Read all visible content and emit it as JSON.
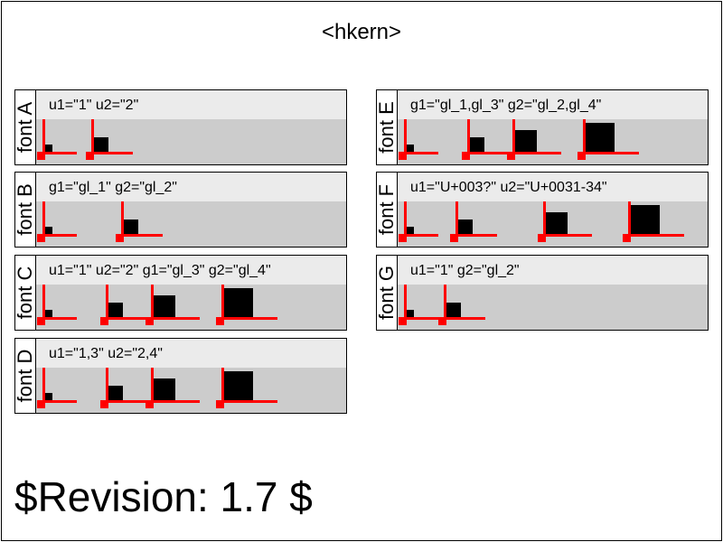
{
  "title": "<hkern>",
  "revision": "$Revision: 1.7 $",
  "panels": [
    {
      "id": "a",
      "font_label": "font A",
      "attrs": "u1=\"1\" u2=\"2\"",
      "glyph_sizes": [
        "small",
        "medium"
      ]
    },
    {
      "id": "b",
      "font_label": "font B",
      "attrs": "g1=\"gl_1\" g2=\"gl_2\"",
      "glyph_sizes": [
        "small",
        "medium"
      ]
    },
    {
      "id": "c",
      "font_label": "font C",
      "attrs": "u1=\"1\" u2=\"2\" g1=\"gl_3\" g2=\"gl_4\"",
      "glyph_sizes": [
        "small",
        "medium",
        "large",
        "xlarge"
      ]
    },
    {
      "id": "d",
      "font_label": "font D",
      "attrs": "u1=\"1,3\" u2=\"2,4\"",
      "glyph_sizes": [
        "small",
        "medium",
        "large",
        "xlarge"
      ]
    },
    {
      "id": "e",
      "font_label": "font E",
      "attrs": "g1=\"gl_1,gl_3\" g2=\"gl_2,gl_4\"",
      "glyph_sizes": [
        "small",
        "medium",
        "large",
        "xlarge"
      ]
    },
    {
      "id": "f",
      "font_label": "font F",
      "attrs": "u1=\"U+003?\" u2=\"U+0031-34\"",
      "glyph_sizes": [
        "small",
        "medium",
        "large",
        "xlarge"
      ]
    },
    {
      "id": "g",
      "font_label": "font G",
      "attrs": "u1=\"1\" g2=\"gl_2\"",
      "glyph_sizes": [
        "small",
        "medium"
      ]
    }
  ],
  "colors": {
    "glyph": "#000000",
    "origin_marker": "#ff0000",
    "attr_bar": "#ebebeb",
    "glyph_area": "#cccccc"
  }
}
